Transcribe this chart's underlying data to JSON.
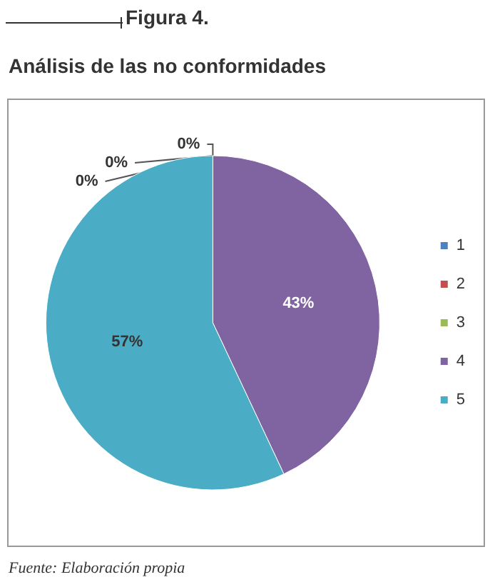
{
  "chart_data": {
    "type": "pie",
    "title": "Figura 4.",
    "subtitle": "Análisis de las no conformidades",
    "categories": [
      "1",
      "2",
      "3",
      "4",
      "5"
    ],
    "values": [
      0,
      0,
      0,
      43,
      57
    ],
    "colors": [
      "#4f81bd",
      "#c0504d",
      "#9bbb59",
      "#8064a2",
      "#4bacc6"
    ],
    "value_labels": [
      "0%",
      "0%",
      "0%",
      "43%",
      "57%"
    ],
    "legend": "right",
    "annotations": [
      "Fuente: Elaboración propia"
    ]
  }
}
